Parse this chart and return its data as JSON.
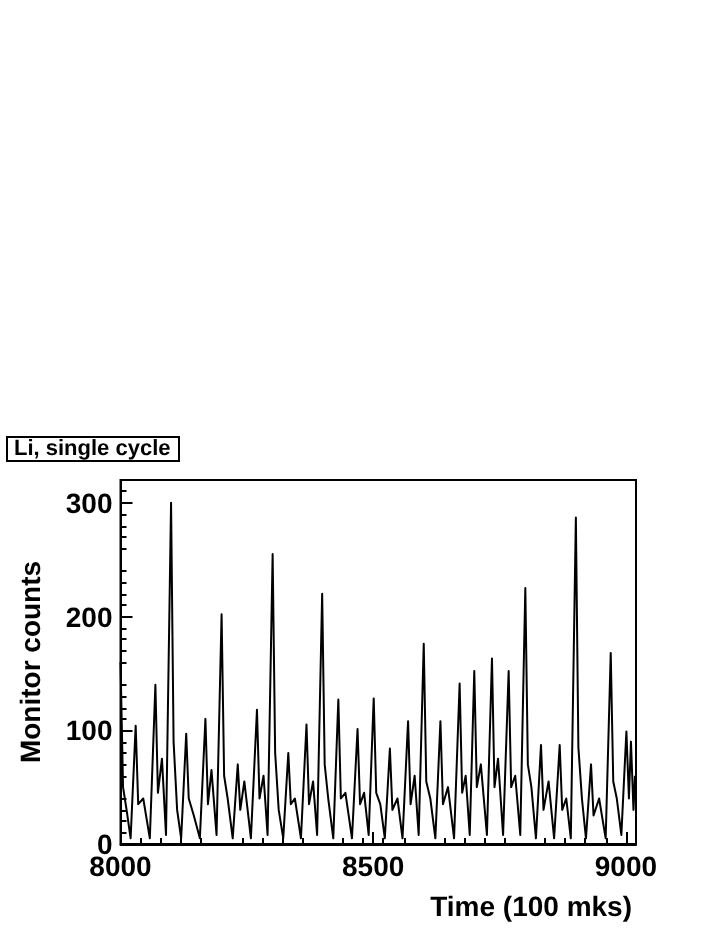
{
  "chart_data": {
    "type": "line",
    "title": "Li, single cycle",
    "xlabel": "Time (100 mks)",
    "ylabel": "Monitor counts",
    "xlim": [
      8000,
      9020
    ],
    "xticks": [
      8000,
      8500,
      9000
    ],
    "ylim": [
      0,
      320
    ],
    "yticks": [
      0,
      100,
      200,
      300
    ],
    "grid": false,
    "marker": "none",
    "line_style": "solid",
    "series": [
      {
        "color": "#000000",
        "x": [
          8000,
          8005,
          8012,
          8020,
          8030,
          8035,
          8045,
          8058,
          8069,
          8074,
          8082,
          8090,
          8100,
          8105,
          8112,
          8120,
          8130,
          8135,
          8145,
          8157,
          8168,
          8173,
          8180,
          8190,
          8200,
          8205,
          8212,
          8222,
          8232,
          8237,
          8245,
          8258,
          8270,
          8275,
          8283,
          8291,
          8301,
          8306,
          8313,
          8322,
          8332,
          8337,
          8345,
          8357,
          8368,
          8373,
          8381,
          8389,
          8399,
          8404,
          8411,
          8421,
          8431,
          8436,
          8445,
          8458,
          8469,
          8474,
          8482,
          8491,
          8501,
          8506,
          8514,
          8523,
          8533,
          8538,
          8548,
          8558,
          8569,
          8574,
          8582,
          8590,
          8600,
          8605,
          8613,
          8623,
          8633,
          8638,
          8648,
          8660,
          8671,
          8676,
          8683,
          8691,
          8700,
          8705,
          8713,
          8725,
          8735,
          8740,
          8747,
          8757,
          8768,
          8773,
          8781,
          8791,
          8801,
          8806,
          8813,
          8822,
          8832,
          8837,
          8847,
          8858,
          8869,
          8874,
          8882,
          8891,
          8901,
          8906,
          8913,
          8921,
          8931,
          8936,
          8947,
          8960,
          8970,
          8975,
          8982,
          8991,
          9001,
          9006,
          9010,
          9015,
          9018
        ],
        "values": [
          160,
          50,
          30,
          5,
          104,
          35,
          40,
          5,
          140,
          45,
          75,
          8,
          300,
          90,
          30,
          5,
          97,
          40,
          25,
          5,
          110,
          35,
          65,
          8,
          202,
          60,
          40,
          5,
          70,
          30,
          55,
          5,
          118,
          40,
          60,
          8,
          255,
          80,
          30,
          5,
          80,
          35,
          40,
          5,
          105,
          35,
          55,
          8,
          220,
          70,
          40,
          5,
          127,
          40,
          45,
          5,
          101,
          35,
          45,
          8,
          128,
          45,
          35,
          5,
          84,
          30,
          40,
          5,
          108,
          35,
          60,
          8,
          176,
          55,
          40,
          5,
          108,
          35,
          50,
          5,
          141,
          45,
          60,
          8,
          152,
          50,
          70,
          8,
          163,
          50,
          75,
          8,
          152,
          50,
          60,
          8,
          225,
          70,
          50,
          5,
          87,
          30,
          55,
          5,
          87,
          30,
          40,
          5,
          287,
          85,
          40,
          5,
          70,
          25,
          40,
          5,
          168,
          55,
          40,
          8,
          99,
          40,
          90,
          30,
          60
        ]
      }
    ]
  }
}
